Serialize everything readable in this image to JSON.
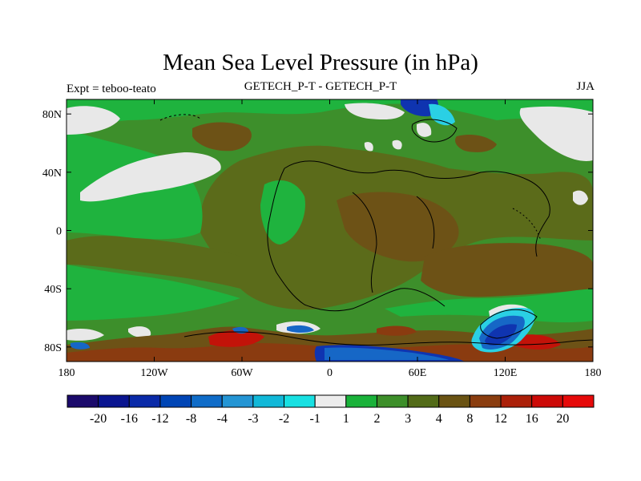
{
  "title": "Mean Sea Level Pressure (in hPa)",
  "left_subtitle": "Expt = teboo-teato",
  "center_subtitle": "GETECH_P-T - GETECH_P-T",
  "right_subtitle": "JJA",
  "map": {
    "projection": "cylindrical equidistant",
    "lon_range": [
      -180,
      180
    ],
    "lat_range": [
      -90,
      90
    ],
    "x_ticks": [
      "180",
      "120W",
      "60W",
      "0",
      "60E",
      "120E",
      "180"
    ],
    "y_ticks": [
      "80N",
      "40N",
      "0",
      "40S",
      "80S"
    ]
  },
  "colorbar": {
    "labels": [
      "-20",
      "-16",
      "-12",
      "-8",
      "-4",
      "-3",
      "-2",
      "-1",
      "1",
      "2",
      "3",
      "4",
      "8",
      "12",
      "16",
      "20"
    ],
    "colors": [
      "#1b0a6b",
      "#0a1590",
      "#0a2aa8",
      "#0045b5",
      "#0f6cc8",
      "#2495d4",
      "#11b8d8",
      "#18e0e2",
      "#ececec",
      "#1ab23a",
      "#3d8f2a",
      "#526b18",
      "#6a5313",
      "#8a3d0f",
      "#ab2009",
      "#cc0a07",
      "#e60a0a"
    ]
  },
  "colors": {
    "green_bright": "#1fb33e",
    "green_mid": "#3d8f2b",
    "olive": "#5b6b1a",
    "brown": "#6d5216",
    "dark_brown": "#8a3b10",
    "red": "#c21309",
    "light_gray": "#e8e8e8",
    "blue_dark": "#0f34b0",
    "blue_mid": "#1667c6",
    "cyan": "#2ad0e4"
  }
}
